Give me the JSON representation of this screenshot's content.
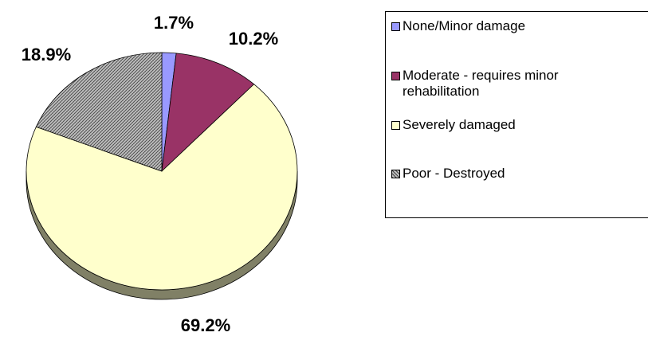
{
  "chart_data": {
    "type": "pie",
    "categories": [
      "None/Minor damage",
      "Moderate - requires minor rehabilitation",
      "Severely damaged",
      "Poor - Destroyed"
    ],
    "values": [
      1.7,
      10.2,
      69.2,
      18.9
    ],
    "value_labels": [
      "1.7%",
      "10.2%",
      "69.2%",
      "18.9%"
    ],
    "colors": [
      "#9999ff",
      "#993366",
      "#ffffcc",
      "#c0c0c0"
    ],
    "patterns": [
      null,
      null,
      null,
      "hatch"
    ],
    "three_d": true,
    "legend": "right"
  }
}
